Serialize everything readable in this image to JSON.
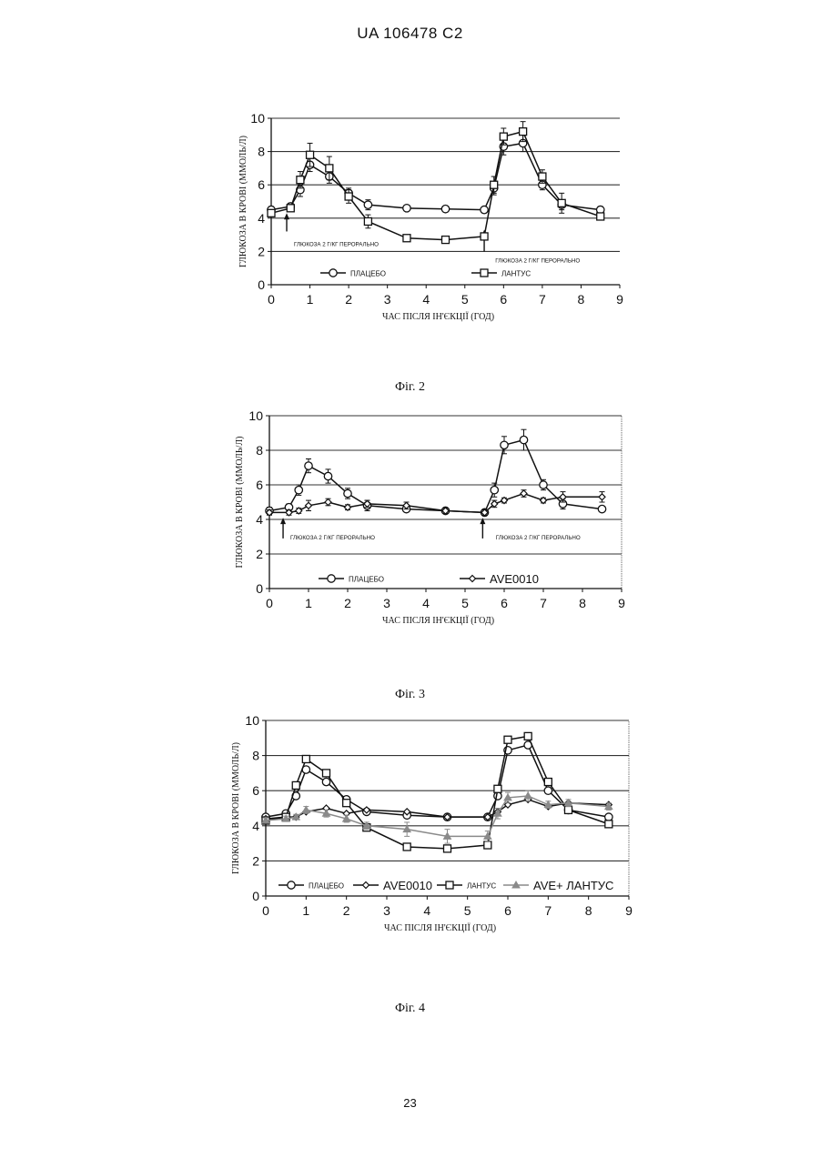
{
  "header": "UA   106478   C2",
  "page_number": "23",
  "chart_data": [
    {
      "type": "line",
      "caption": "Фіг. 2",
      "ylabel": "ГЛЮКОЗА В КРОВІ (ММОЛЬ/Л)",
      "xlabel": "ЧАС ПІСЛЯ ІН'ЄКЦІЇ (ГОД)",
      "xlim": [
        0,
        9
      ],
      "ylim": [
        0,
        10
      ],
      "xticks": [
        "0",
        "1",
        "2",
        "3",
        "4",
        "5",
        "6",
        "7",
        "8",
        "9"
      ],
      "yticks": [
        "0",
        "2",
        "4",
        "6",
        "8",
        "10"
      ],
      "grid": "horizontal",
      "plot_border": false,
      "annotations": [
        {
          "text": "ГЛЮКОЗА 2 Г/КГ ПЕРОРАЛЬНО",
          "x": 0.4,
          "y": 2.5,
          "arrow_x": 0.4,
          "arrow_from": 3.2,
          "arrow_to": 4.3
        },
        {
          "text": "ГЛЮКОЗА 2 Г/КГ ПЕРОРАЛЬНО",
          "x": 5.6,
          "y": 1.5,
          "arrow_x": 5.5,
          "arrow_from": 2.0,
          "arrow_to": 3.3
        }
      ],
      "series": [
        {
          "name": "ПЛАЦЕБО",
          "marker": "circle",
          "color": "#111111",
          "x": [
            0,
            0.5,
            0.75,
            1,
            1.5,
            2,
            2.5,
            3.5,
            4.5,
            5.5,
            5.75,
            6,
            6.5,
            7,
            7.5,
            8.5
          ],
          "y": [
            4.5,
            4.7,
            5.7,
            7.2,
            6.5,
            5.5,
            4.8,
            4.6,
            4.55,
            4.5,
            5.8,
            8.3,
            8.5,
            6.0,
            4.8,
            4.5
          ],
          "err": [
            0.2,
            0.2,
            0.4,
            0.4,
            0.4,
            0.3,
            0.3,
            0.15,
            0.15,
            0.15,
            0.4,
            0.5,
            0.5,
            0.3,
            0.3,
            0.2
          ]
        },
        {
          "name": "ЛАНТУС",
          "marker": "square",
          "color": "#111111",
          "x": [
            0,
            0.5,
            0.75,
            1,
            1.5,
            2,
            2.5,
            3.5,
            4.5,
            5.5,
            5.75,
            6,
            6.5,
            7,
            7.5,
            8.5
          ],
          "y": [
            4.3,
            4.6,
            6.3,
            7.8,
            7.0,
            5.3,
            3.8,
            2.8,
            2.7,
            2.9,
            6.0,
            8.9,
            9.2,
            6.5,
            4.9,
            4.1
          ],
          "err": [
            0.2,
            0.2,
            0.5,
            0.7,
            0.7,
            0.4,
            0.4,
            0.2,
            0.2,
            0.2,
            0.5,
            0.5,
            0.6,
            0.4,
            0.6,
            0.2
          ]
        }
      ]
    },
    {
      "type": "line",
      "caption": "Фіг. 3",
      "ylabel": "ГЛЮКОЗА В КРОВІ (ММОЛЬ/Л)",
      "xlabel": "ЧАС ПІСЛЯ ІН'ЄКЦІЇ (ГОД)",
      "xlim": [
        0,
        9
      ],
      "ylim": [
        0,
        10
      ],
      "xticks": [
        "0",
        "1",
        "2",
        "3",
        "4",
        "5",
        "6",
        "7",
        "8",
        "9"
      ],
      "yticks": [
        "0",
        "2",
        "4",
        "6",
        "8",
        "10"
      ],
      "grid": "horizontal",
      "plot_border": true,
      "annotations": [
        {
          "text": "ГЛЮКОЗА 2 Г/КГ ПЕРОРАЛЬНО",
          "x": 0.35,
          "y": 3.0,
          "arrow_x": 0.35,
          "arrow_from": 2.9,
          "arrow_to": 4.1
        },
        {
          "text": "ГЛЮКОЗА 2 Г/КГ ПЕРОРАЛЬНО",
          "x": 5.6,
          "y": 3.0,
          "arrow_x": 5.45,
          "arrow_from": 2.9,
          "arrow_to": 4.1
        }
      ],
      "series": [
        {
          "name": "ПЛАЦЕБО",
          "marker": "circle",
          "color": "#111111",
          "x": [
            0,
            0.5,
            0.75,
            1,
            1.5,
            2,
            2.5,
            3.5,
            4.5,
            5.5,
            5.75,
            6,
            6.5,
            7,
            7.5,
            8.5
          ],
          "y": [
            4.5,
            4.7,
            5.7,
            7.1,
            6.5,
            5.5,
            4.8,
            4.6,
            4.5,
            4.4,
            5.7,
            8.3,
            8.6,
            6.0,
            4.9,
            4.6
          ],
          "err": [
            0.2,
            0.2,
            0.3,
            0.4,
            0.4,
            0.3,
            0.3,
            0.15,
            0.15,
            0.15,
            0.4,
            0.5,
            0.6,
            0.3,
            0.3,
            0.15
          ]
        },
        {
          "name": "AVE0010",
          "marker": "diamond",
          "color": "#111111",
          "x": [
            0,
            0.5,
            0.75,
            1,
            1.5,
            2,
            2.5,
            3.5,
            4.5,
            5.5,
            5.75,
            6,
            6.5,
            7,
            7.5,
            8.5
          ],
          "y": [
            4.4,
            4.4,
            4.5,
            4.8,
            5.0,
            4.7,
            4.9,
            4.8,
            4.5,
            4.4,
            4.9,
            5.1,
            5.5,
            5.1,
            5.3,
            5.3
          ],
          "err": [
            0.15,
            0.15,
            0.15,
            0.3,
            0.2,
            0.15,
            0.2,
            0.2,
            0.15,
            0.15,
            0.2,
            0.15,
            0.2,
            0.15,
            0.3,
            0.3
          ]
        }
      ]
    },
    {
      "type": "line",
      "caption": "Фіг. 4",
      "ylabel": "ГЛЮКОЗА В КРОВІ (ММОЛЬ/Л)",
      "xlabel": "ЧАС ПІСЛЯ ІН'ЄКЦІЇ (ГОД)",
      "xlim": [
        0,
        9
      ],
      "ylim": [
        0,
        10
      ],
      "xticks": [
        "0",
        "1",
        "2",
        "3",
        "4",
        "5",
        "6",
        "7",
        "8",
        "9"
      ],
      "yticks": [
        "0",
        "2",
        "4",
        "6",
        "8",
        "10"
      ],
      "grid": "horizontal",
      "plot_border": true,
      "annotations": [],
      "series": [
        {
          "name": "ПЛАЦЕБО",
          "marker": "circle",
          "color": "#111111",
          "x": [
            0,
            0.5,
            0.75,
            1,
            1.5,
            2,
            2.5,
            3.5,
            4.5,
            5.5,
            5.75,
            6,
            6.5,
            7,
            7.5,
            8.5
          ],
          "y": [
            4.5,
            4.7,
            5.7,
            7.2,
            6.5,
            5.5,
            4.8,
            4.6,
            4.5,
            4.5,
            5.7,
            8.3,
            8.6,
            6.0,
            4.9,
            4.5
          ],
          "err": []
        },
        {
          "name": "AVE0010",
          "marker": "diamond",
          "color": "#111111",
          "x": [
            0,
            0.5,
            0.75,
            1,
            1.5,
            2,
            2.5,
            3.5,
            4.5,
            5.5,
            5.75,
            6,
            6.5,
            7,
            7.5,
            8.5
          ],
          "y": [
            4.4,
            4.5,
            4.5,
            4.8,
            5.0,
            4.7,
            4.9,
            4.8,
            4.5,
            4.5,
            4.8,
            5.2,
            5.5,
            5.1,
            5.3,
            5.2
          ],
          "err": []
        },
        {
          "name": "ЛАНТУС",
          "marker": "square",
          "color": "#111111",
          "x": [
            0,
            0.5,
            0.75,
            1,
            1.5,
            2,
            2.5,
            3.5,
            4.5,
            5.5,
            5.75,
            6,
            6.5,
            7,
            7.5,
            8.5
          ],
          "y": [
            4.3,
            4.5,
            6.3,
            7.8,
            7.0,
            5.3,
            3.9,
            2.8,
            2.7,
            2.9,
            6.1,
            8.9,
            9.1,
            6.5,
            4.9,
            4.1
          ],
          "err": []
        },
        {
          "name": "AVE+ ЛАНТУС",
          "marker": "triangle",
          "color": "#8a8a8a",
          "x": [
            0,
            0.5,
            0.75,
            1,
            1.5,
            2,
            2.5,
            3.5,
            4.5,
            5.5,
            5.75,
            6,
            6.5,
            7,
            7.5,
            8.5
          ],
          "y": [
            4.3,
            4.4,
            4.5,
            4.9,
            4.7,
            4.4,
            4.0,
            3.8,
            3.4,
            3.4,
            4.7,
            5.6,
            5.7,
            5.2,
            5.3,
            5.1
          ],
          "err": [
            0.15,
            0.15,
            0.15,
            0.2,
            0.2,
            0.2,
            0.2,
            0.4,
            0.4,
            0.3,
            0.3,
            0.3,
            0.3,
            0.2,
            0.2,
            0.2
          ]
        }
      ]
    }
  ]
}
